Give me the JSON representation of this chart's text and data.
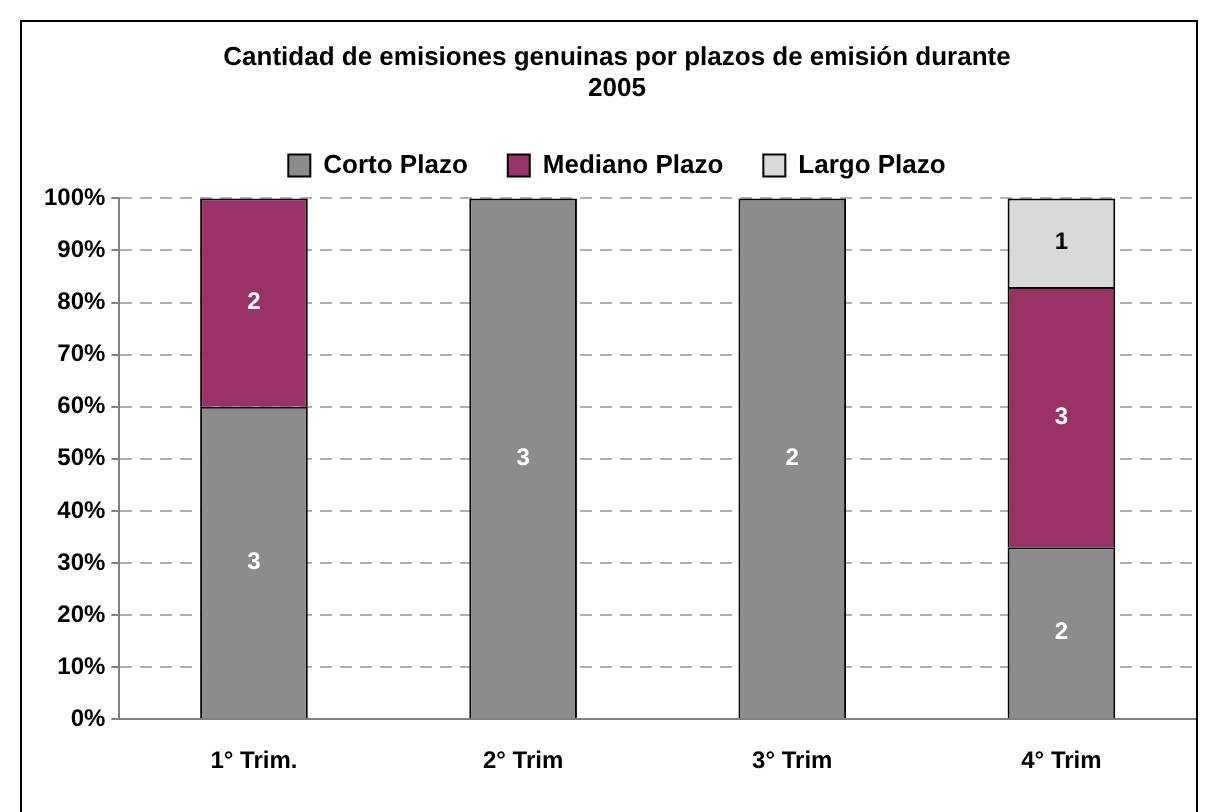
{
  "chart_data": {
    "type": "bar",
    "stacked": true,
    "title": [
      "Cantidad de emisiones genuinas por plazos de emisión durante",
      "2005"
    ],
    "categories": [
      "1° Trim.",
      "2° Trim",
      "3° Trim",
      "4° Trim"
    ],
    "series": [
      {
        "name": "Corto Plazo",
        "color": "#8c8c8c",
        "values": [
          60,
          100,
          100,
          33
        ]
      },
      {
        "name": "Mediano Plazo",
        "color": "#993366",
        "values": [
          40,
          null,
          null,
          50
        ]
      },
      {
        "name": "Largo Plazo",
        "color": "#d9d9d9",
        "values": [
          null,
          null,
          null,
          17
        ]
      }
    ],
    "annotations": [
      "3",
      "3",
      "2",
      "2",
      "2",
      "3",
      "1"
    ],
    "ylim": [
      0,
      100
    ],
    "yticks": [
      {
        "value": 0,
        "label": "0%"
      },
      {
        "value": 10,
        "label": "10%"
      },
      {
        "value": 20,
        "label": "20%"
      },
      {
        "value": 30,
        "label": "30%"
      },
      {
        "value": 40,
        "label": "40%"
      },
      {
        "value": 50,
        "label": "50%"
      },
      {
        "value": 60,
        "label": "60%"
      },
      {
        "value": 70,
        "label": "70%"
      },
      {
        "value": 80,
        "label": "80%"
      },
      {
        "value": 90,
        "label": "90%"
      },
      {
        "value": 100,
        "label": "100%"
      }
    ],
    "grid": "y",
    "legend": "top"
  }
}
